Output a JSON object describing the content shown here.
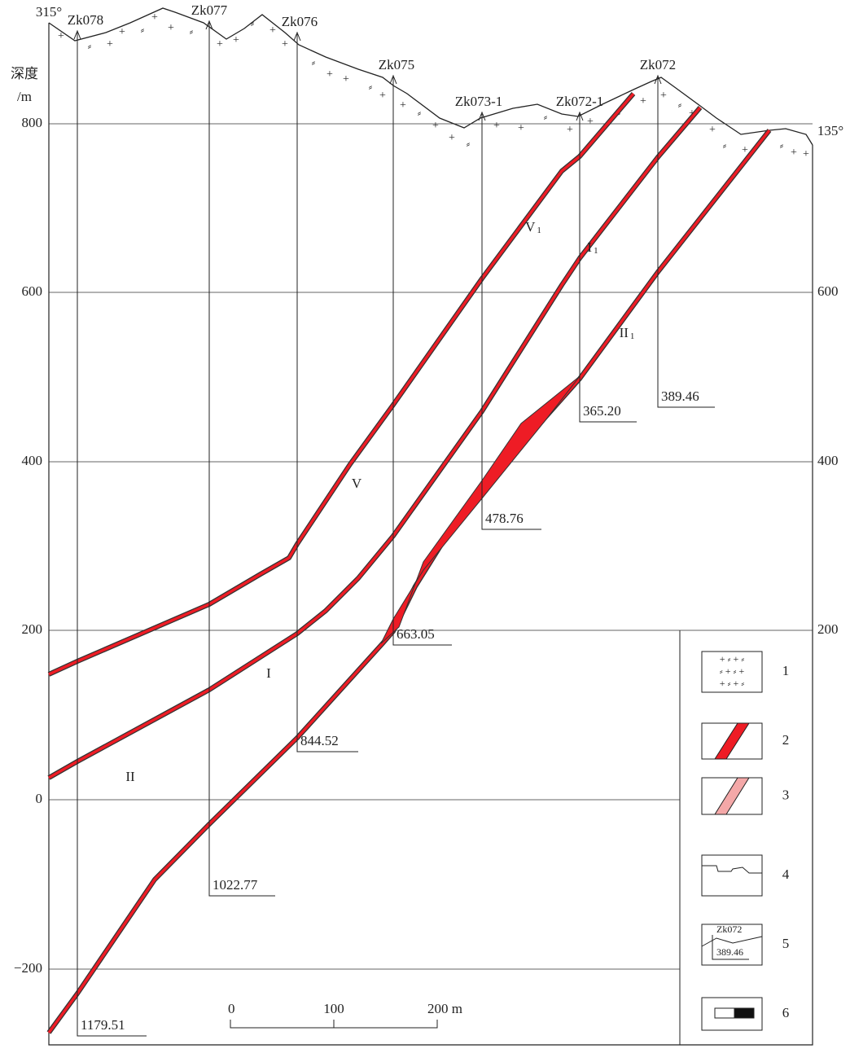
{
  "header": {
    "left_azimuth": "315°",
    "right_azimuth": "135°",
    "depth_title": "深度",
    "depth_unit": "/m"
  },
  "depth_axis": {
    "left": [
      "800",
      "600",
      "400",
      "200",
      "0",
      "−200"
    ],
    "right": [
      "600",
      "400",
      "200"
    ]
  },
  "drill_holes": [
    {
      "name": "Zk078",
      "depth": "1179.51"
    },
    {
      "name": "Zk077",
      "depth": "1022.77"
    },
    {
      "name": "Zk076",
      "depth": "844.52"
    },
    {
      "name": "Zk075",
      "depth": "663.05"
    },
    {
      "name": "Zk073-1",
      "depth": "478.76"
    },
    {
      "name": "Zk072-1",
      "depth": "365.20"
    },
    {
      "name": "Zk072",
      "depth": "389.46"
    }
  ],
  "veins": [
    {
      "main": "V",
      "sub": "1"
    },
    {
      "main": "I",
      "sub": "1"
    },
    {
      "main": "II",
      "sub": "1"
    },
    {
      "main": "V"
    },
    {
      "main": "I"
    },
    {
      "main": "II"
    }
  ],
  "scale_bar": [
    "0",
    "100",
    "200 m"
  ],
  "legend": {
    "items": [
      "1",
      "2",
      "3",
      "4",
      "5",
      "6"
    ],
    "sample_hole": "Zk072",
    "sample_depth": "389.46"
  }
}
